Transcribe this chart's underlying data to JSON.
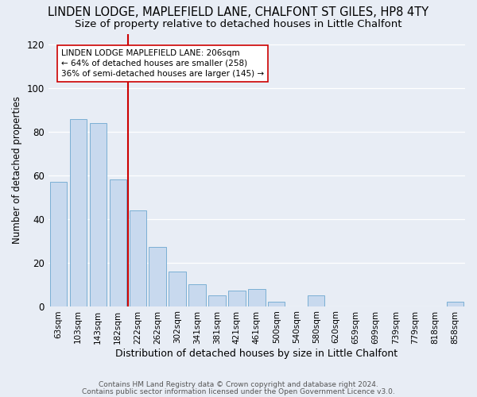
{
  "title": "LINDEN LODGE, MAPLEFIELD LANE, CHALFONT ST GILES, HP8 4TY",
  "subtitle": "Size of property relative to detached houses in Little Chalfont",
  "xlabel": "Distribution of detached houses by size in Little Chalfont",
  "ylabel": "Number of detached properties",
  "footer1": "Contains HM Land Registry data © Crown copyright and database right 2024.",
  "footer2": "Contains public sector information licensed under the Open Government Licence v3.0.",
  "categories": [
    "63sqm",
    "103sqm",
    "143sqm",
    "182sqm",
    "222sqm",
    "262sqm",
    "302sqm",
    "341sqm",
    "381sqm",
    "421sqm",
    "461sqm",
    "500sqm",
    "540sqm",
    "580sqm",
    "620sqm",
    "659sqm",
    "699sqm",
    "739sqm",
    "779sqm",
    "818sqm",
    "858sqm"
  ],
  "values": [
    57,
    86,
    84,
    58,
    44,
    27,
    16,
    10,
    5,
    7,
    8,
    2,
    0,
    5,
    0,
    0,
    0,
    0,
    0,
    0,
    2
  ],
  "bar_color": "#c8d9ee",
  "bar_edge_color": "#7bafd4",
  "vline_x_index": 3.5,
  "vline_color": "#cc0000",
  "annotation_line0": "LINDEN LODGE MAPLEFIELD LANE: 206sqm",
  "annotation_line1": "← 64% of detached houses are smaller (258)",
  "annotation_line2": "36% of semi-detached houses are larger (145) →",
  "annotation_box_color": "#ffffff",
  "annotation_box_edge": "#cc0000",
  "ylim": [
    0,
    125
  ],
  "yticks": [
    0,
    20,
    40,
    60,
    80,
    100,
    120
  ],
  "bg_color": "#e8edf5",
  "plot_bg_color": "#e8edf5",
  "title_fontsize": 10.5,
  "subtitle_fontsize": 9.5,
  "title_fontweight": "normal"
}
